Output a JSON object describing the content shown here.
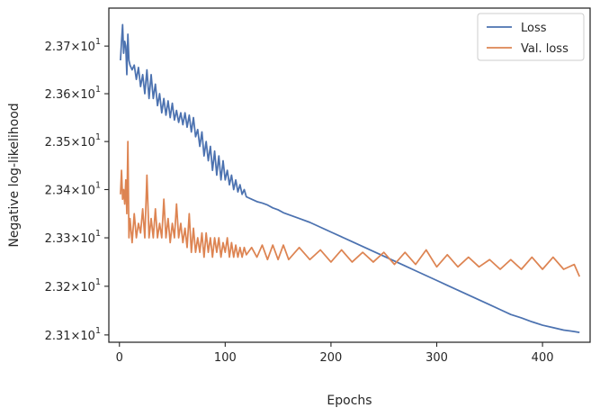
{
  "chart_data": {
    "type": "line",
    "title": "",
    "xlabel": "Epochs",
    "ylabel": "Negative log-likelihood",
    "xlim": [
      -10,
      445
    ],
    "ylim": [
      23.085,
      23.78
    ],
    "yscale": "log",
    "grid": false,
    "legend_position": "top-right",
    "x_ticks": [
      0,
      100,
      200,
      300,
      400
    ],
    "x_tick_labels": [
      "0",
      "100",
      "200",
      "300",
      "400"
    ],
    "y_ticks": [
      23.1,
      23.2,
      23.3,
      23.4,
      23.5,
      23.6,
      23.7
    ],
    "y_tick_labels": [
      {
        "mantissa": "2.31",
        "base": "10",
        "exp": "1"
      },
      {
        "mantissa": "2.32",
        "base": "10",
        "exp": "1"
      },
      {
        "mantissa": "2.33",
        "base": "10",
        "exp": "1"
      },
      {
        "mantissa": "2.34",
        "base": "10",
        "exp": "1"
      },
      {
        "mantissa": "2.35",
        "base": "10",
        "exp": "1"
      },
      {
        "mantissa": "2.36",
        "base": "10",
        "exp": "1"
      },
      {
        "mantissa": "2.37",
        "base": "10",
        "exp": "1"
      }
    ],
    "series": [
      {
        "name": "Loss",
        "color": "#4c72b0",
        "x": [
          1,
          2,
          3,
          4,
          5,
          6,
          7,
          8,
          9,
          10,
          12,
          14,
          16,
          18,
          20,
          22,
          24,
          26,
          28,
          30,
          32,
          34,
          36,
          38,
          40,
          42,
          44,
          46,
          48,
          50,
          52,
          54,
          56,
          58,
          60,
          62,
          64,
          66,
          68,
          70,
          72,
          74,
          76,
          78,
          80,
          82,
          84,
          86,
          88,
          90,
          92,
          94,
          96,
          98,
          100,
          102,
          104,
          106,
          108,
          110,
          112,
          114,
          116,
          118,
          120,
          125,
          130,
          135,
          140,
          145,
          150,
          155,
          160,
          170,
          180,
          190,
          200,
          210,
          220,
          230,
          240,
          250,
          260,
          270,
          280,
          290,
          300,
          310,
          320,
          330,
          340,
          350,
          360,
          370,
          380,
          390,
          400,
          410,
          420,
          430,
          435
        ],
        "y": [
          23.67,
          23.71,
          23.745,
          23.685,
          23.71,
          23.7,
          23.64,
          23.725,
          23.67,
          23.66,
          23.65,
          23.66,
          23.63,
          23.655,
          23.615,
          23.64,
          23.6,
          23.65,
          23.59,
          23.64,
          23.59,
          23.62,
          23.575,
          23.6,
          23.56,
          23.59,
          23.555,
          23.585,
          23.55,
          23.58,
          23.545,
          23.565,
          23.54,
          23.56,
          23.535,
          23.56,
          23.53,
          23.555,
          23.52,
          23.55,
          23.51,
          23.525,
          23.49,
          23.52,
          23.47,
          23.5,
          23.46,
          23.49,
          23.44,
          23.48,
          23.43,
          23.47,
          23.42,
          23.46,
          23.42,
          23.44,
          23.41,
          23.43,
          23.4,
          23.42,
          23.395,
          23.41,
          23.39,
          23.4,
          23.385,
          23.38,
          23.375,
          23.372,
          23.368,
          23.362,
          23.358,
          23.352,
          23.348,
          23.34,
          23.332,
          23.322,
          23.312,
          23.302,
          23.292,
          23.282,
          23.272,
          23.262,
          23.252,
          23.242,
          23.232,
          23.222,
          23.212,
          23.202,
          23.192,
          23.182,
          23.172,
          23.162,
          23.152,
          23.142,
          23.135,
          23.127,
          23.12,
          23.115,
          23.11,
          23.107,
          23.105
        ]
      },
      {
        "name": "Val. loss",
        "color": "#dd8452",
        "x": [
          1,
          2,
          3,
          4,
          5,
          6,
          7,
          8,
          9,
          10,
          12,
          14,
          16,
          18,
          20,
          22,
          24,
          26,
          28,
          30,
          32,
          34,
          36,
          38,
          40,
          42,
          44,
          46,
          48,
          50,
          52,
          54,
          56,
          58,
          60,
          62,
          64,
          66,
          68,
          70,
          72,
          74,
          76,
          78,
          80,
          82,
          84,
          86,
          88,
          90,
          92,
          94,
          96,
          98,
          100,
          102,
          104,
          106,
          108,
          110,
          112,
          114,
          116,
          118,
          120,
          125,
          130,
          135,
          140,
          145,
          150,
          155,
          160,
          170,
          180,
          190,
          200,
          210,
          220,
          230,
          240,
          250,
          260,
          270,
          280,
          290,
          300,
          310,
          320,
          330,
          340,
          350,
          360,
          370,
          380,
          390,
          400,
          410,
          420,
          430,
          435
        ],
        "y": [
          23.39,
          23.44,
          23.38,
          23.4,
          23.37,
          23.42,
          23.35,
          23.5,
          23.3,
          23.34,
          23.29,
          23.35,
          23.3,
          23.33,
          23.31,
          23.36,
          23.3,
          23.43,
          23.3,
          23.34,
          23.3,
          23.36,
          23.3,
          23.33,
          23.3,
          23.38,
          23.3,
          23.34,
          23.29,
          23.33,
          23.3,
          23.37,
          23.3,
          23.33,
          23.29,
          23.32,
          23.28,
          23.35,
          23.27,
          23.32,
          23.27,
          23.3,
          23.27,
          23.31,
          23.26,
          23.31,
          23.27,
          23.3,
          23.26,
          23.3,
          23.27,
          23.3,
          23.26,
          23.29,
          23.27,
          23.3,
          23.26,
          23.29,
          23.26,
          23.285,
          23.26,
          23.28,
          23.26,
          23.28,
          23.265,
          23.28,
          23.26,
          23.285,
          23.255,
          23.285,
          23.255,
          23.285,
          23.255,
          23.28,
          23.255,
          23.275,
          23.25,
          23.275,
          23.25,
          23.27,
          23.25,
          23.27,
          23.245,
          23.27,
          23.245,
          23.275,
          23.24,
          23.265,
          23.24,
          23.26,
          23.24,
          23.255,
          23.235,
          23.255,
          23.235,
          23.26,
          23.235,
          23.26,
          23.235,
          23.245,
          23.22
        ]
      }
    ]
  }
}
